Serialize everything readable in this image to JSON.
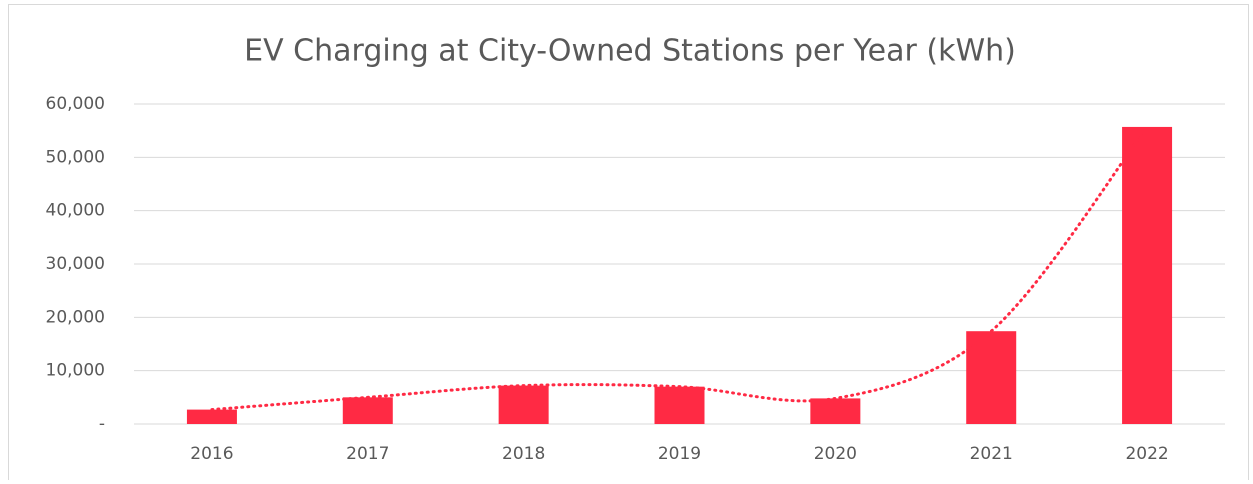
{
  "chart_data": {
    "type": "bar",
    "title": "EV Charging at City-Owned Stations per Year (kWh)",
    "categories": [
      "2016",
      "2017",
      "2018",
      "2019",
      "2020",
      "2021",
      "2022"
    ],
    "values": [
      2700,
      5000,
      7200,
      7000,
      4800,
      17400,
      55700
    ],
    "color": "#ff2a44",
    "trendline": true,
    "ylim": [
      0,
      60000
    ],
    "yticks": [
      {
        "value": 0,
        "label": "-"
      },
      {
        "value": 10000,
        "label": "10,000"
      },
      {
        "value": 20000,
        "label": "20,000"
      },
      {
        "value": 30000,
        "label": "30,000"
      },
      {
        "value": 40000,
        "label": "40,000"
      },
      {
        "value": 50000,
        "label": "50,000"
      },
      {
        "value": 60000,
        "label": "60,000"
      }
    ],
    "grid": true
  }
}
